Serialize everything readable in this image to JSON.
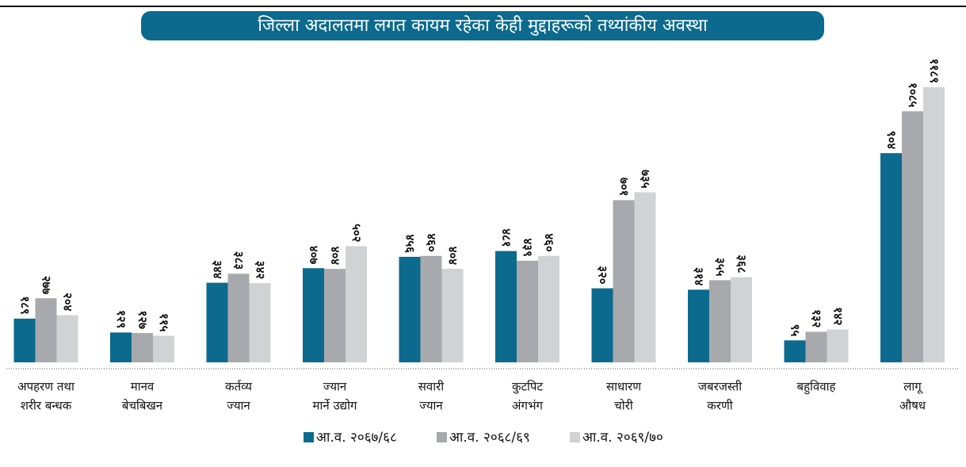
{
  "chart_data": {
    "type": "bar",
    "title": "जिल्ला अदालतमा लगत कायम रहेका केही मुद्दाहरूको तथ्यांकीय अवस्था",
    "categories": [
      [
        "अपहरण तथा",
        "शरीर बन्धक"
      ],
      [
        "मानव",
        "बेचबिखन"
      ],
      [
        "कर्तव्य",
        "ज्यान"
      ],
      [
        "ज्यान",
        "मार्ने उद्योग"
      ],
      [
        "सवारी",
        "ज्यान"
      ],
      [
        "कुटपिट",
        "अंगभंग"
      ],
      [
        "साधारण",
        "चोरी"
      ],
      [
        "जबरजस्ती",
        "करणी"
      ],
      [
        "बहुविवाह"
      ],
      [
        "लागू",
        "औषध"
      ]
    ],
    "series": [
      {
        "name": "आ.व. २०६७/६८",
        "color": "#0b6a8e",
        "values": [
          189,
          129,
          344,
          407,
          456,
          481,
          320,
          314,
          95,
          904
        ],
        "value_labels": [
          "१८९",
          "१२९",
          "३४४",
          "४०७",
          "४५६",
          "४८१",
          "३२०",
          "३१४",
          "९५",
          "९०४"
        ]
      },
      {
        "name": "आ.व. २०६८/६९",
        "color": "#a7a9ac",
        "values": [
          277,
          127,
          383,
          404,
          460,
          439,
          701,
          355,
          132,
          1085
        ],
        "value_labels": [
          "२७७",
          "१२७",
          "३८३",
          "४०४",
          "४६०",
          "४३९",
          "७०१",
          "३५५",
          "१३२",
          "१०८५"
        ]
      },
      {
        "name": "आ.व. २०६९/७०",
        "color": "#d1d2d4",
        "values": [
          204,
          115,
          342,
          502,
          404,
          460,
          735,
          368,
          142,
          1189
        ],
        "value_labels": [
          "२०४",
          "११५",
          "३४२",
          "५०२",
          "४०४",
          "४६०",
          "७३५",
          "३६८",
          "१४२",
          "११८९"
        ]
      }
    ]
  }
}
